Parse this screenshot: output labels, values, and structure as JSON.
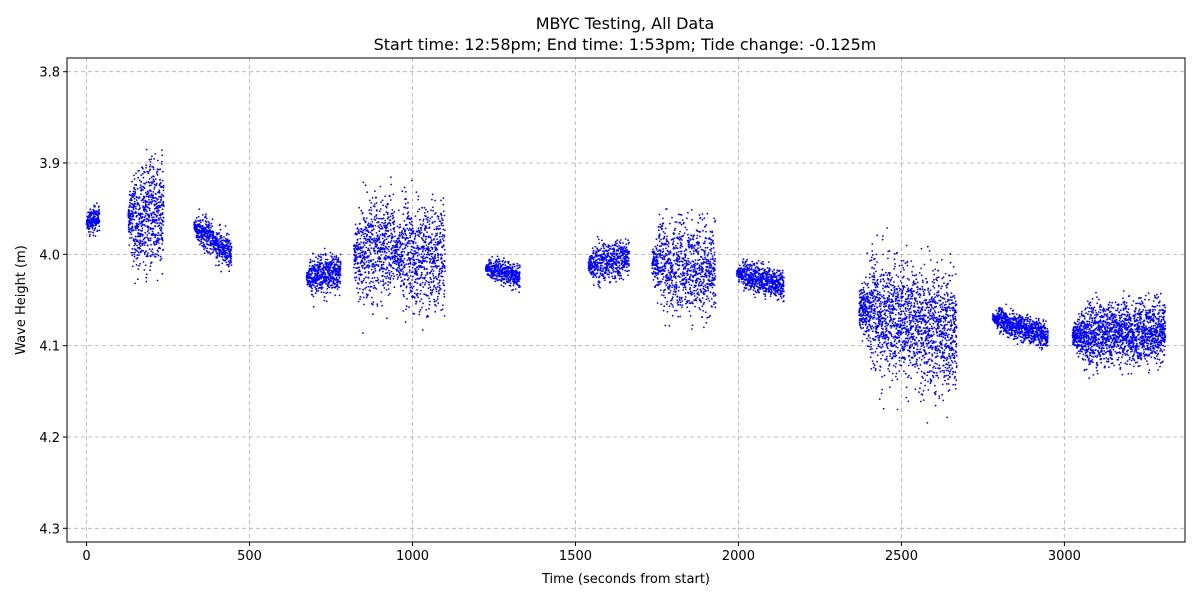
{
  "chart_data": {
    "type": "scatter",
    "title": "MBYC Testing, All Data",
    "subtitle": "Start time: 12:58pm; End time: 1:53pm; Tide change: -0.125m",
    "xlabel": "Time (seconds from start)",
    "ylabel": "Wave Height (m)",
    "xlim": [
      -60,
      3370
    ],
    "ylim": [
      4.315,
      3.785
    ],
    "y_inverted": true,
    "x_ticks": [
      0,
      500,
      1000,
      1500,
      2000,
      2500,
      3000
    ],
    "x_tick_labels": [
      "0",
      "500",
      "1000",
      "1500",
      "2000",
      "2500",
      "3000"
    ],
    "y_ticks": [
      3.8,
      3.9,
      4.0,
      4.1,
      4.2,
      4.3
    ],
    "y_tick_labels": [
      "3.8",
      "3.9",
      "4.0",
      "4.1",
      "4.2",
      "4.3"
    ],
    "grid": true,
    "marker_color": "#0000ff",
    "series": [
      {
        "bursts": [
          {
            "x": [
              0,
              40
            ],
            "points": 220,
            "y_center_start": 3.965,
            "y_center_end": 3.96,
            "spread": 0.085
          },
          {
            "x": [
              128,
              237
            ],
            "points": 700,
            "y_center_start": 3.96,
            "y_center_end": 3.955,
            "spread": 0.36
          },
          {
            "x": [
              330,
              445
            ],
            "points": 550,
            "y_center_start": 3.97,
            "y_center_end": 4.0,
            "spread": 0.11
          },
          {
            "x": [
              675,
              780
            ],
            "points": 550,
            "y_center_start": 4.025,
            "y_center_end": 4.02,
            "spread": 0.14
          },
          {
            "x": [
              820,
              945
            ],
            "points": 650,
            "y_center_start": 4.0,
            "y_center_end": 3.99,
            "spread": 0.35
          },
          {
            "x": [
              945,
              1100
            ],
            "points": 800,
            "y_center_start": 4.0,
            "y_center_end": 4.005,
            "spread": 0.37
          },
          {
            "x": [
              1225,
              1330
            ],
            "points": 450,
            "y_center_start": 4.015,
            "y_center_end": 4.025,
            "spread": 0.08
          },
          {
            "x": [
              1540,
              1665
            ],
            "points": 550,
            "y_center_start": 4.012,
            "y_center_end": 4.005,
            "spread": 0.14
          },
          {
            "x": [
              1735,
              1930
            ],
            "points": 950,
            "y_center_start": 4.01,
            "y_center_end": 4.02,
            "spread": 0.33
          },
          {
            "x": [
              1995,
              2140
            ],
            "points": 650,
            "y_center_start": 4.02,
            "y_center_end": 4.035,
            "spread": 0.1
          },
          {
            "x": [
              2370,
              2670
            ],
            "points": 1900,
            "y_center_start": 4.06,
            "y_center_end": 4.09,
            "spread": 0.41
          },
          {
            "x": [
              2780,
              2950
            ],
            "points": 850,
            "y_center_start": 4.07,
            "y_center_end": 4.09,
            "spread": 0.09
          },
          {
            "x": [
              3025,
              3310
            ],
            "points": 1800,
            "y_center_start": 4.09,
            "y_center_end": 4.085,
            "spread": 0.22
          }
        ]
      }
    ]
  }
}
